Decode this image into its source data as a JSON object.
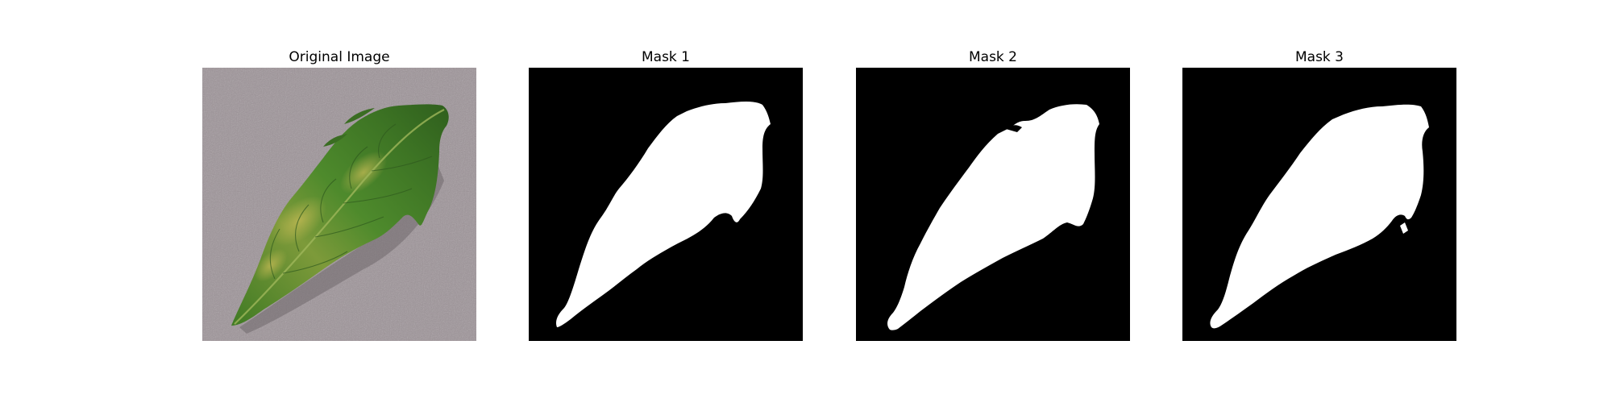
{
  "figure": {
    "panels": [
      {
        "title": "Original Image",
        "content": "leaf-photo"
      },
      {
        "title": "Mask 1",
        "content": "binary-mask"
      },
      {
        "title": "Mask 2",
        "content": "binary-mask"
      },
      {
        "title": "Mask 3",
        "content": "binary-mask"
      }
    ]
  },
  "colors": {
    "background": "#ffffff",
    "mask_background": "#000000",
    "mask_foreground": "#ffffff",
    "backdrop_gray": "#9d9399",
    "leaf_green": "#4f8a2e",
    "leaf_dark": "#2f5a1e",
    "leaf_yellow": "#b8b04a"
  }
}
